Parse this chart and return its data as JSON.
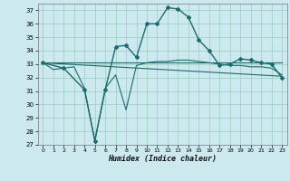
{
  "xlabel": "Humidex (Indice chaleur)",
  "bg_color": "#cce9f0",
  "grid_color": "#99ccbb",
  "line_color": "#1e6b6b",
  "xlim": [
    -0.5,
    23.5
  ],
  "ylim": [
    27,
    37.5
  ],
  "yticks": [
    27,
    28,
    29,
    30,
    31,
    32,
    33,
    34,
    35,
    36,
    37
  ],
  "xticks": [
    0,
    1,
    2,
    3,
    4,
    5,
    6,
    7,
    8,
    9,
    10,
    11,
    12,
    13,
    14,
    15,
    16,
    17,
    18,
    19,
    20,
    21,
    22,
    23
  ],
  "series": [
    {
      "x": [
        0,
        23
      ],
      "y": [
        33.1,
        33.1
      ],
      "has_markers": false,
      "linewidth": 0.8
    },
    {
      "x": [
        0,
        1,
        2,
        3,
        4,
        5,
        6,
        7,
        8,
        9,
        10,
        11,
        12,
        13,
        14,
        15,
        16,
        17,
        18,
        19,
        20,
        21,
        22,
        23
      ],
      "y": [
        33.1,
        32.6,
        32.7,
        32.8,
        31.2,
        27.3,
        31.2,
        32.2,
        29.6,
        32.9,
        33.1,
        33.2,
        33.2,
        33.3,
        33.3,
        33.2,
        33.1,
        33.0,
        32.9,
        32.9,
        32.8,
        32.8,
        32.7,
        32.2
      ],
      "has_markers": false,
      "linewidth": 0.8
    },
    {
      "x": [
        0,
        23
      ],
      "y": [
        33.1,
        32.1
      ],
      "has_markers": false,
      "linewidth": 0.8
    },
    {
      "x": [
        0,
        2,
        4,
        5,
        6,
        7,
        8,
        9,
        10,
        11,
        12,
        13,
        14,
        15,
        16,
        17,
        18,
        19,
        20,
        21,
        22,
        23
      ],
      "y": [
        33.1,
        32.7,
        31.1,
        27.3,
        31.1,
        34.3,
        34.4,
        33.5,
        36.0,
        36.0,
        37.2,
        37.1,
        36.5,
        34.8,
        34.0,
        32.9,
        33.0,
        33.4,
        33.3,
        33.1,
        33.0,
        32.0
      ],
      "has_markers": true,
      "linewidth": 1.0
    }
  ]
}
